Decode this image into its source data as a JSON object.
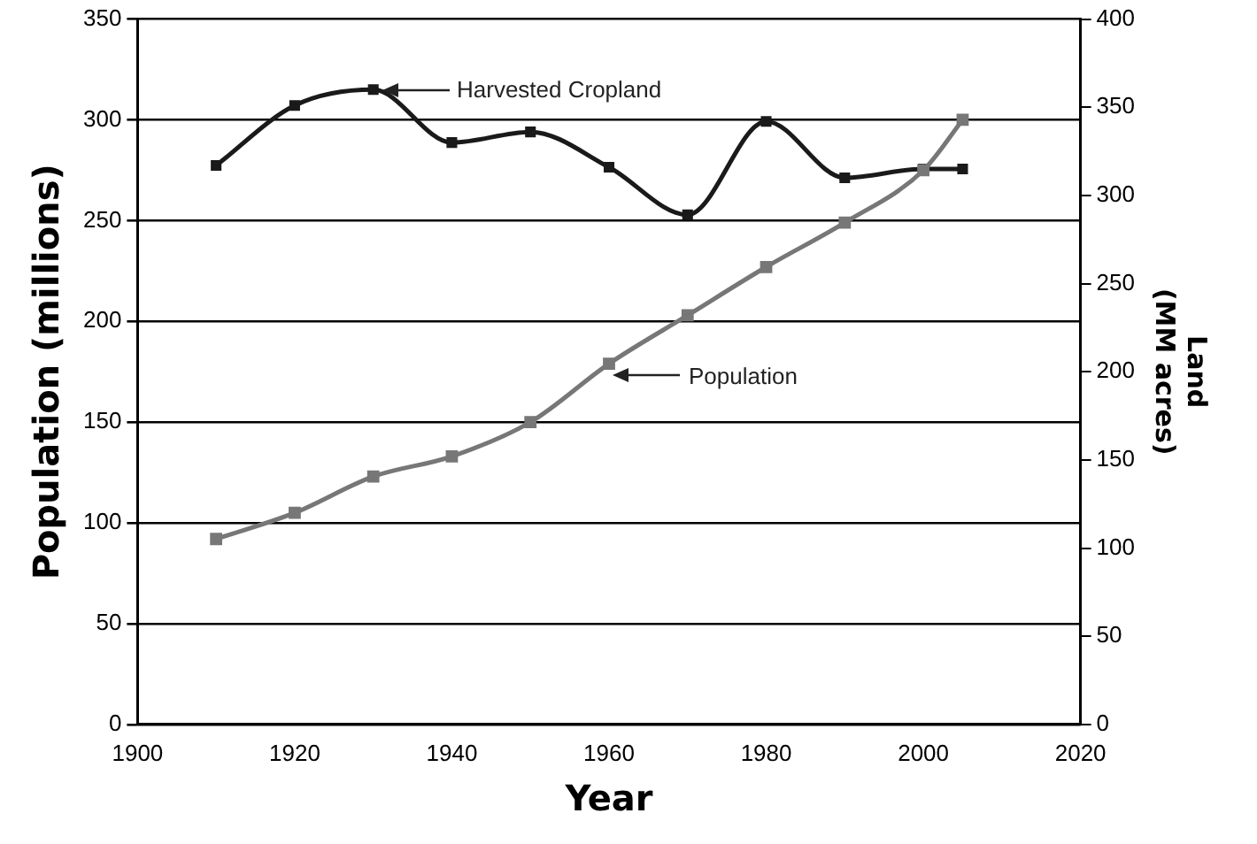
{
  "chart_data": {
    "type": "line",
    "xlabel": "Year",
    "ylabel": "Population (millions)",
    "y2label": "Land\n(MM acres)",
    "xlim": [
      1900,
      2020
    ],
    "xticks": [
      1900,
      1920,
      1940,
      1960,
      1980,
      2000,
      2020
    ],
    "ylim": [
      0,
      350
    ],
    "yticks": [
      0,
      50,
      100,
      150,
      200,
      250,
      300,
      350
    ],
    "y2lim": [
      0,
      400
    ],
    "y2ticks": [
      0,
      50,
      100,
      150,
      200,
      250,
      300,
      350,
      400
    ],
    "grid": "y",
    "legend": false,
    "marker": "square",
    "line_style": "solid",
    "series": [
      {
        "axis": "y2",
        "color": "#1a1a1a",
        "x": [
          1910,
          1920,
          1930,
          1940,
          1950,
          1960,
          1970,
          1980,
          1990,
          2000,
          2005
        ],
        "values": [
          317,
          351,
          360,
          330,
          336,
          316,
          289,
          342,
          310,
          315,
          315
        ]
      },
      {
        "axis": "y",
        "color": "#777777",
        "x": [
          1910,
          1920,
          1930,
          1940,
          1950,
          1960,
          1970,
          1980,
          1990,
          2000,
          2005
        ],
        "values": [
          92,
          105,
          123,
          133,
          150,
          179,
          203,
          227,
          249,
          275,
          300
        ]
      }
    ],
    "annotations": [
      "Harvested Cropland",
      "Population"
    ]
  }
}
